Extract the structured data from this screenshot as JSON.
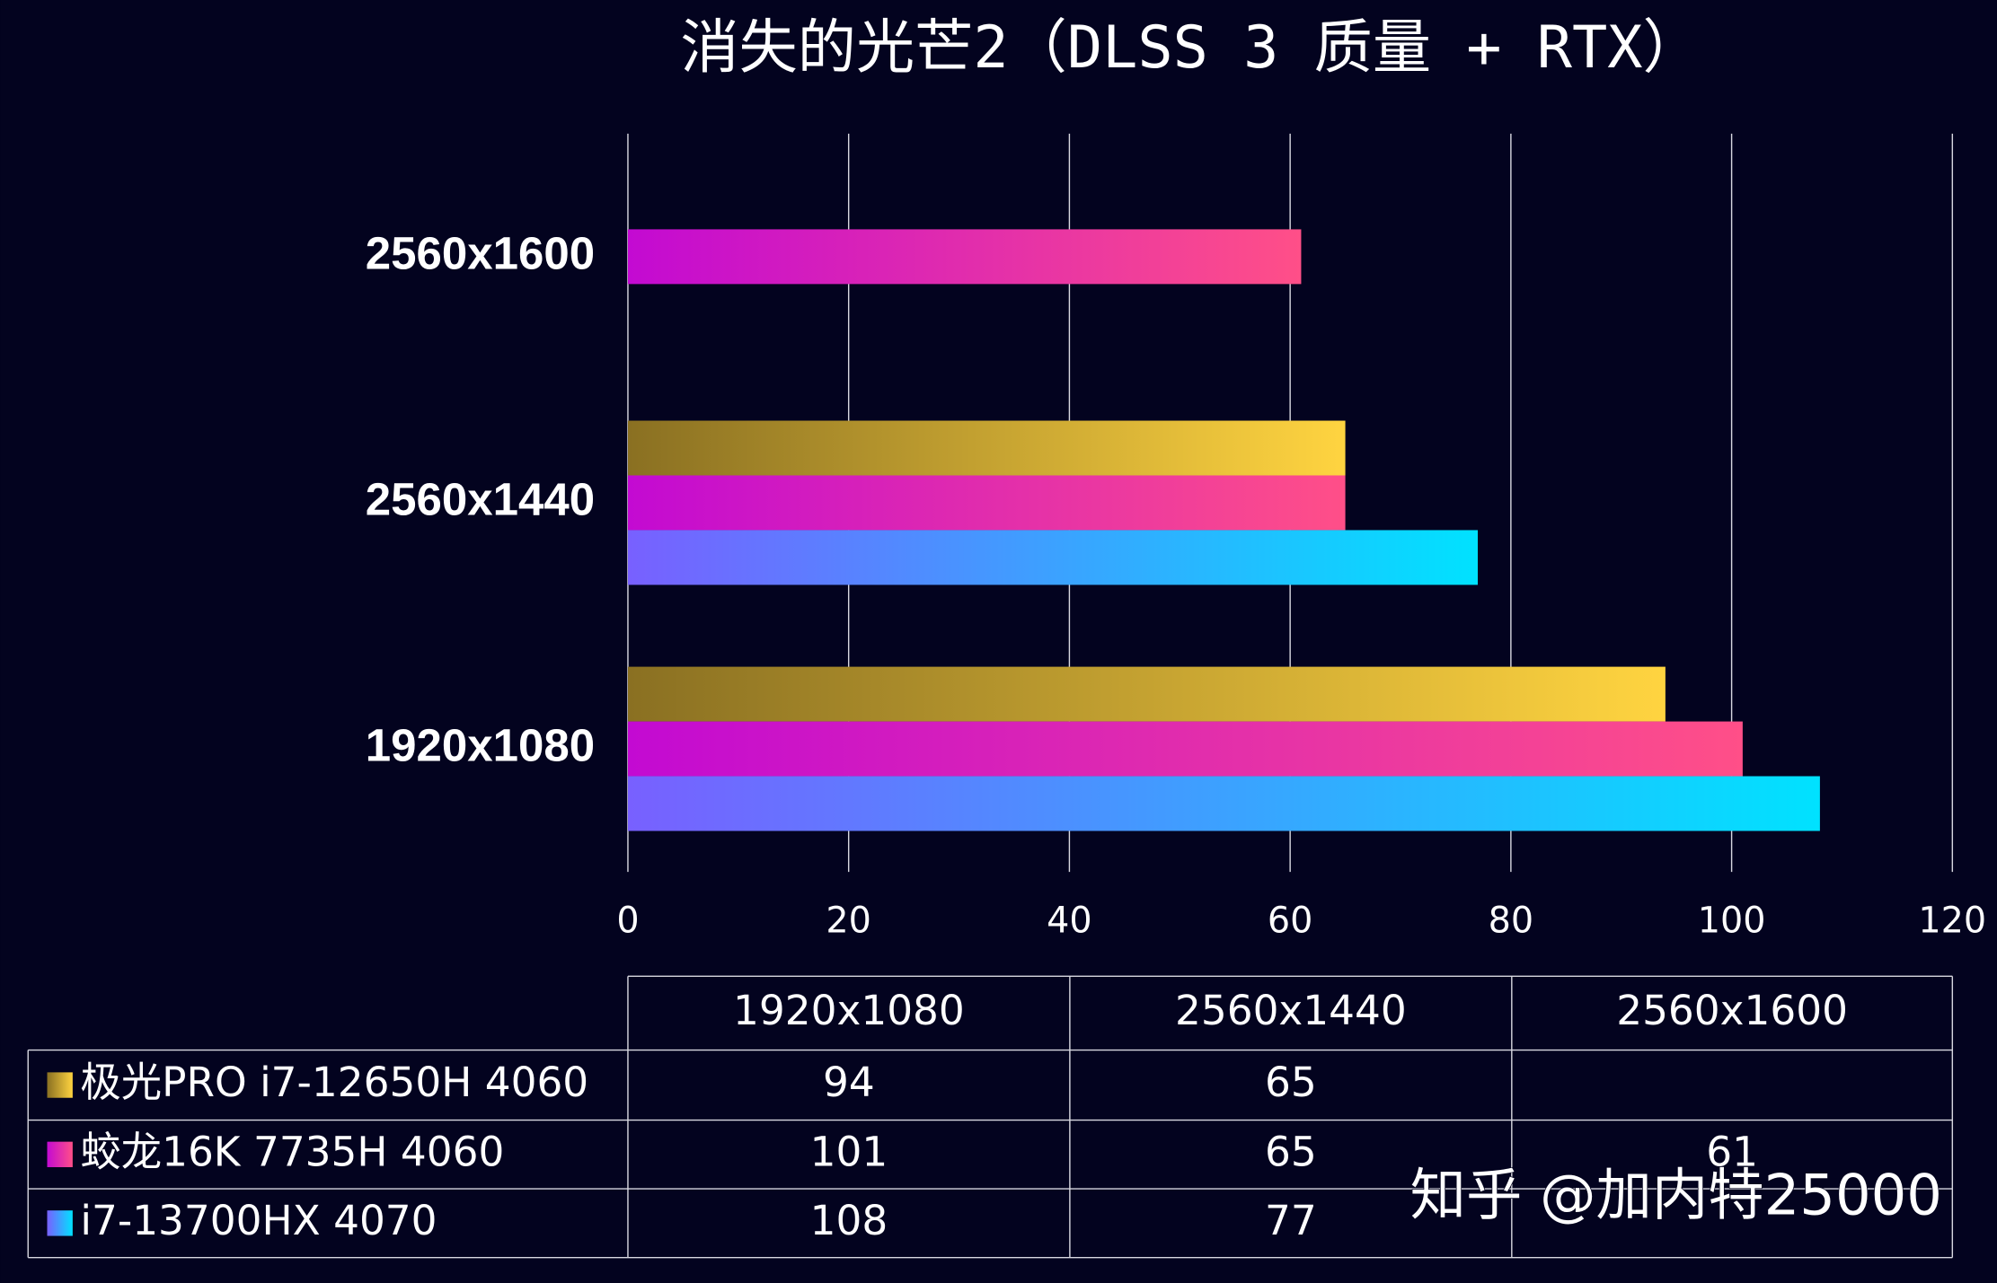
{
  "chart_data": {
    "type": "bar",
    "orientation": "horizontal",
    "title": "消失的光芒2（DLSS 3 质量 + RTX）",
    "categories": [
      "1920x1080",
      "2560x1440",
      "2560x1600"
    ],
    "series": [
      {
        "name": "极光PRO i7-12650H 4060",
        "color": "#e8b838",
        "gradient": [
          "#8a7022",
          "#ffd440"
        ],
        "values": [
          94,
          65,
          null
        ]
      },
      {
        "name": "蛟龙16K 7735H 4060",
        "color": "#e030b0",
        "gradient": [
          "#c30ad2",
          "#ff4f88"
        ],
        "values": [
          101,
          65,
          61
        ]
      },
      {
        "name": "i7-13700HX 4070",
        "color": "#40a8ff",
        "gradient": [
          "#7860ff",
          "#00e2ff"
        ],
        "values": [
          108,
          77,
          null
        ]
      }
    ],
    "xlim": [
      0,
      120
    ],
    "xticks": [
      0,
      20,
      40,
      60,
      80,
      100,
      120
    ],
    "grid": true,
    "watermark": "知乎 @加内特25000"
  }
}
